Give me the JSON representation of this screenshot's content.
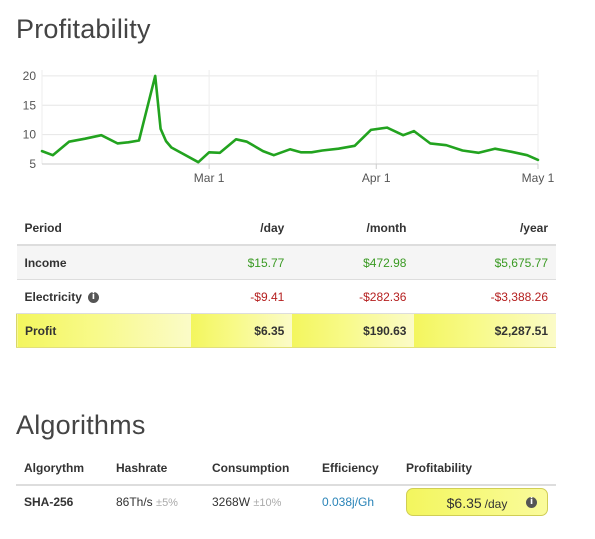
{
  "profitability": {
    "title": "Profitability",
    "table": {
      "headers": [
        "Period",
        "/day",
        "/month",
        "/year"
      ],
      "rows": [
        {
          "label": "Income",
          "day": "$15.77",
          "month": "$472.98",
          "year": "$5,675.77"
        },
        {
          "label": "Electricity",
          "day": "-$9.41",
          "month": "-$282.36",
          "year": "-$3,388.26"
        },
        {
          "label": "Profit",
          "day": "$6.35",
          "month": "$190.63",
          "year": "$2,287.51"
        }
      ]
    }
  },
  "chart_data": {
    "type": "line",
    "title": "",
    "xlabel": "",
    "ylabel": "",
    "x_tick_labels": [
      "Mar 1",
      "Apr 1",
      "May 1"
    ],
    "y_ticks": [
      5,
      10,
      15,
      20
    ],
    "ylim": [
      5,
      21
    ],
    "x_start": "2018-01-29",
    "grid": true,
    "legend": "none",
    "color": "#22a31f",
    "series": [
      {
        "x": [
          "2018-01-29",
          "2018-01-31",
          "2018-02-03",
          "2018-02-06",
          "2018-02-09",
          "2018-02-12",
          "2018-02-14",
          "2018-02-16",
          "2018-02-19",
          "2018-02-20",
          "2018-02-21",
          "2018-02-22",
          "2018-02-24",
          "2018-02-27",
          "2018-03-01",
          "2018-03-03",
          "2018-03-06",
          "2018-03-08",
          "2018-03-11",
          "2018-03-13",
          "2018-03-16",
          "2018-03-18",
          "2018-03-20",
          "2018-03-22",
          "2018-03-25",
          "2018-03-28",
          "2018-03-31",
          "2018-04-03",
          "2018-04-06",
          "2018-04-08",
          "2018-04-11",
          "2018-04-14",
          "2018-04-17",
          "2018-04-20",
          "2018-04-23",
          "2018-04-26",
          "2018-04-29",
          "2018-05-01"
        ],
        "values": [
          7.2,
          6.5,
          8.8,
          9.3,
          9.9,
          8.5,
          8.7,
          9.0,
          20.0,
          11.0,
          8.9,
          7.8,
          6.8,
          5.3,
          7.0,
          6.9,
          9.2,
          8.8,
          7.2,
          6.5,
          7.5,
          7.0,
          7.0,
          7.3,
          7.6,
          8.1,
          10.8,
          11.2,
          9.9,
          10.6,
          8.5,
          8.2,
          7.3,
          6.9,
          7.6,
          7.1,
          6.5,
          5.7
        ]
      }
    ]
  },
  "algorithms": {
    "title": "Algorithms",
    "headers": [
      "Algorythm",
      "Hashrate",
      "Consumption",
      "Efficiency",
      "Profitability"
    ],
    "rows": [
      {
        "algorithm": "SHA-256",
        "hashrate": "86Th/s",
        "hashrate_tol": "±5%",
        "consumption": "3268W",
        "consumption_tol": "±10%",
        "efficiency": "0.038j/Gh",
        "profit": "$6.35",
        "profit_period": "/day"
      }
    ]
  },
  "colors": {
    "accent_green": "#22a31f",
    "positive": "#3a9a23",
    "negative": "#b52020",
    "highlight": "#f3f65e",
    "link": "#2a84b8"
  }
}
